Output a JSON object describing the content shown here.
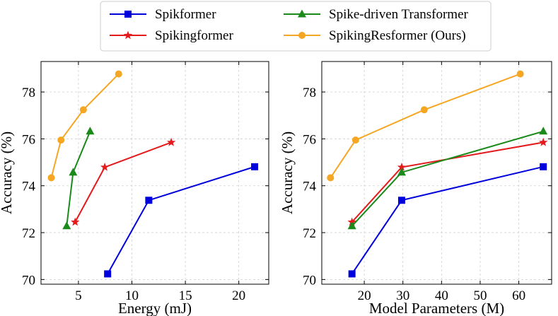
{
  "legend": {
    "entries": [
      {
        "name": "Spikformer",
        "color": "#0000dd",
        "marker": "square"
      },
      {
        "name": "Spikingformer",
        "color": "#e41a1c",
        "marker": "star"
      },
      {
        "name": "Spike-driven Transformer",
        "color": "#1a8a1a",
        "marker": "triangle"
      },
      {
        "name": "SpikingResformer (Ours)",
        "color": "#f5a623",
        "marker": "circle"
      }
    ],
    "placement": "top-center"
  },
  "chart_data": [
    {
      "type": "line",
      "xlabel": "Energy (mJ)",
      "ylabel": "Accuracy (%)",
      "xlim": [
        1.5,
        22.8
      ],
      "ylim": [
        69.8,
        79.3
      ],
      "xticks": [
        5,
        10,
        15,
        20
      ],
      "yticks": [
        70,
        72,
        74,
        76,
        78
      ],
      "xtick_labels": [
        "5",
        "10",
        "15",
        "20"
      ],
      "ytick_labels": [
        "70",
        "72",
        "74",
        "76",
        "78"
      ],
      "grid": true,
      "series": [
        {
          "name": "Spikformer",
          "x": [
            7.73,
            11.58,
            21.48
          ],
          "y": [
            70.24,
            73.38,
            74.81
          ]
        },
        {
          "name": "Spikingformer",
          "x": [
            4.69,
            7.46,
            13.68
          ],
          "y": [
            72.45,
            74.79,
            75.85
          ]
        },
        {
          "name": "Spike-driven Transformer",
          "x": [
            3.9,
            4.5,
            6.09
          ],
          "y": [
            72.28,
            74.57,
            76.32
          ]
        },
        {
          "name": "SpikingResformer (Ours)",
          "x": [
            2.46,
            3.37,
            5.46,
            8.76
          ],
          "y": [
            74.34,
            75.95,
            77.24,
            78.77
          ]
        }
      ]
    },
    {
      "type": "line",
      "xlabel": "Model Parameters (M)",
      "ylabel": "Accuracy (%)",
      "xlim": [
        9.0,
        68.5
      ],
      "ylim": [
        69.8,
        79.3
      ],
      "xticks": [
        20,
        30,
        40,
        50,
        60
      ],
      "yticks": [
        70,
        72,
        74,
        76,
        78
      ],
      "xtick_labels": [
        "20",
        "30",
        "40",
        "50",
        "60"
      ],
      "ytick_labels": [
        "70",
        "72",
        "74",
        "76",
        "78"
      ],
      "grid": true,
      "series": [
        {
          "name": "Spikformer",
          "x": [
            16.81,
            29.68,
            66.34
          ],
          "y": [
            70.24,
            73.38,
            74.81
          ]
        },
        {
          "name": "Spikingformer",
          "x": [
            16.81,
            29.68,
            66.34
          ],
          "y": [
            72.45,
            74.79,
            75.85
          ]
        },
        {
          "name": "Spike-driven Transformer",
          "x": [
            16.81,
            29.68,
            66.34
          ],
          "y": [
            72.28,
            74.57,
            76.32
          ]
        },
        {
          "name": "SpikingResformer (Ours)",
          "x": [
            11.25,
            17.76,
            35.52,
            60.38
          ],
          "y": [
            74.34,
            75.95,
            77.24,
            78.77
          ]
        }
      ]
    }
  ]
}
